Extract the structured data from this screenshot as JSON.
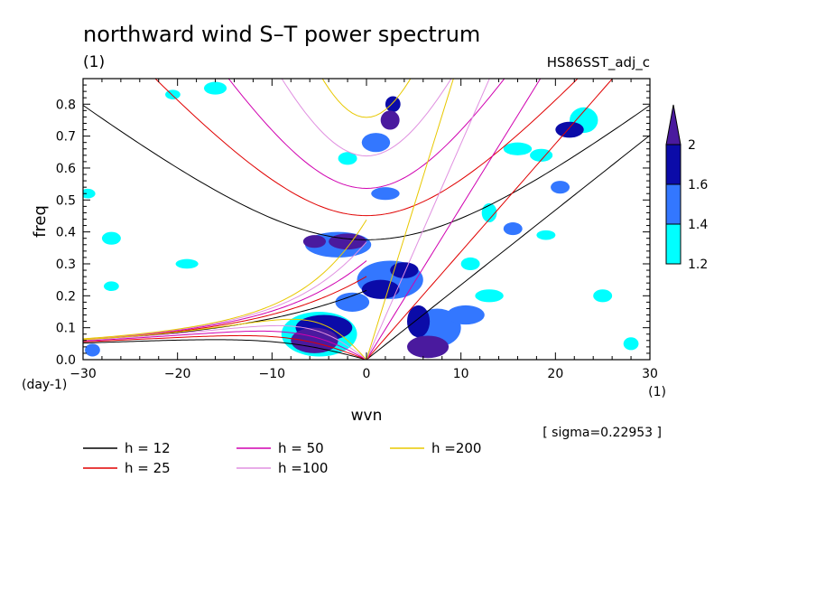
{
  "chart_data": {
    "type": "heatmap",
    "title": "northward wind S–T power spectrum",
    "subtitle_left": "(1)",
    "subtitle_right": "HS86SST_adj_c",
    "xlabel": "wvn",
    "ylabel": "freq",
    "x_unit": "(1)",
    "y_unit": "(day-1)",
    "xlim": [
      -30,
      30
    ],
    "ylim": [
      0,
      0.88
    ],
    "x_ticks": [
      -30,
      -20,
      -10,
      0,
      10,
      20,
      30
    ],
    "x_tick_labels": [
      "−30",
      "−20",
      "−10",
      "0",
      "10",
      "20",
      "30"
    ],
    "y_ticks": [
      0,
      0.1,
      0.2,
      0.3,
      0.4,
      0.5,
      0.6,
      0.7,
      0.8
    ],
    "y_tick_labels": [
      "0.0",
      "0.1",
      "0.2",
      "0.3",
      "0.4",
      "0.5",
      "0.6",
      "0.7",
      "0.8"
    ],
    "sigma_note": "[ sigma=0.22953 ]",
    "colorbar": {
      "levels": [
        1.2,
        1.4,
        1.6,
        2
      ],
      "level_labels": [
        "1.2",
        "1.4",
        "1.6",
        "2"
      ],
      "colors": [
        "#00ffff",
        "#3377ff",
        "#0b0ba8",
        "#4a1a9e"
      ]
    },
    "dispersion_curves": [
      {
        "label": "h = 12",
        "h": 12,
        "color": "#000000"
      },
      {
        "label": "h = 25",
        "h": 25,
        "color": "#e00000"
      },
      {
        "label": "h = 50",
        "h": 50,
        "color": "#d000b0"
      },
      {
        "label": "h =100",
        "h": 100,
        "color": "#e090e0"
      },
      {
        "label": "h =200",
        "h": 200,
        "color": "#e8c800"
      }
    ],
    "contour_blobs": [
      {
        "x": 6.5,
        "y": 0.04,
        "rx": 2.2,
        "ry": 0.035,
        "level": 3
      },
      {
        "x": 5.5,
        "y": 0.12,
        "rx": 1.2,
        "ry": 0.05,
        "level": 2
      },
      {
        "x": 7.5,
        "y": 0.1,
        "rx": 2.5,
        "ry": 0.06,
        "level": 1
      },
      {
        "x": 10.5,
        "y": 0.14,
        "rx": 2.0,
        "ry": 0.03,
        "level": 1
      },
      {
        "x": 13.0,
        "y": 0.2,
        "rx": 1.5,
        "ry": 0.02,
        "level": 0
      },
      {
        "x": -5.5,
        "y": 0.06,
        "rx": 2.5,
        "ry": 0.04,
        "level": 3
      },
      {
        "x": -4.5,
        "y": 0.1,
        "rx": 3.0,
        "ry": 0.04,
        "level": 2
      },
      {
        "x": -5.0,
        "y": 0.08,
        "rx": 4.0,
        "ry": 0.07,
        "level": 0
      },
      {
        "x": -2.0,
        "y": 0.37,
        "rx": 2.0,
        "ry": 0.025,
        "level": 3
      },
      {
        "x": -5.5,
        "y": 0.37,
        "rx": 1.2,
        "ry": 0.02,
        "level": 3
      },
      {
        "x": -3.0,
        "y": 0.36,
        "rx": 3.5,
        "ry": 0.04,
        "level": 1
      },
      {
        "x": 1.5,
        "y": 0.22,
        "rx": 2.0,
        "ry": 0.03,
        "level": 2
      },
      {
        "x": 4.0,
        "y": 0.28,
        "rx": 1.5,
        "ry": 0.025,
        "level": 2
      },
      {
        "x": 2.5,
        "y": 0.25,
        "rx": 3.5,
        "ry": 0.06,
        "level": 1
      },
      {
        "x": -1.5,
        "y": 0.18,
        "rx": 1.8,
        "ry": 0.03,
        "level": 1
      },
      {
        "x": 2.5,
        "y": 0.75,
        "rx": 1.0,
        "ry": 0.03,
        "level": 3
      },
      {
        "x": 2.8,
        "y": 0.8,
        "rx": 0.8,
        "ry": 0.025,
        "level": 2
      },
      {
        "x": 1.0,
        "y": 0.68,
        "rx": 1.5,
        "ry": 0.03,
        "level": 1
      },
      {
        "x": 2.0,
        "y": 0.52,
        "rx": 1.5,
        "ry": 0.02,
        "level": 1
      },
      {
        "x": -2.0,
        "y": 0.63,
        "rx": 1.0,
        "ry": 0.02,
        "level": 0
      },
      {
        "x": 21.5,
        "y": 0.72,
        "rx": 1.5,
        "ry": 0.025,
        "level": 2
      },
      {
        "x": 23.0,
        "y": 0.75,
        "rx": 1.5,
        "ry": 0.04,
        "level": 0
      },
      {
        "x": 20.5,
        "y": 0.54,
        "rx": 1.0,
        "ry": 0.02,
        "level": 1
      },
      {
        "x": 15.5,
        "y": 0.41,
        "rx": 1.0,
        "ry": 0.02,
        "level": 1
      },
      {
        "x": 16.0,
        "y": 0.66,
        "rx": 1.5,
        "ry": 0.02,
        "level": 0
      },
      {
        "x": 18.5,
        "y": 0.64,
        "rx": 1.2,
        "ry": 0.02,
        "level": 0
      },
      {
        "x": -20.5,
        "y": 0.83,
        "rx": 0.8,
        "ry": 0.015,
        "level": 0
      },
      {
        "x": -16.0,
        "y": 0.85,
        "rx": 1.2,
        "ry": 0.02,
        "level": 0
      },
      {
        "x": -27.0,
        "y": 0.38,
        "rx": 1.0,
        "ry": 0.02,
        "level": 0
      },
      {
        "x": -19.0,
        "y": 0.3,
        "rx": 1.2,
        "ry": 0.015,
        "level": 0
      },
      {
        "x": -29.0,
        "y": 0.03,
        "rx": 0.8,
        "ry": 0.02,
        "level": 1
      },
      {
        "x": 11.0,
        "y": 0.3,
        "rx": 1.0,
        "ry": 0.02,
        "level": 0
      },
      {
        "x": 13.0,
        "y": 0.46,
        "rx": 0.8,
        "ry": 0.03,
        "level": 0
      },
      {
        "x": 25.0,
        "y": 0.2,
        "rx": 1.0,
        "ry": 0.02,
        "level": 0
      },
      {
        "x": 28.0,
        "y": 0.05,
        "rx": 0.8,
        "ry": 0.02,
        "level": 0
      },
      {
        "x": -29.5,
        "y": 0.52,
        "rx": 0.8,
        "ry": 0.015,
        "level": 0
      },
      {
        "x": -27.0,
        "y": 0.23,
        "rx": 0.8,
        "ry": 0.015,
        "level": 0
      },
      {
        "x": 19.0,
        "y": 0.39,
        "rx": 1.0,
        "ry": 0.015,
        "level": 0
      }
    ]
  }
}
